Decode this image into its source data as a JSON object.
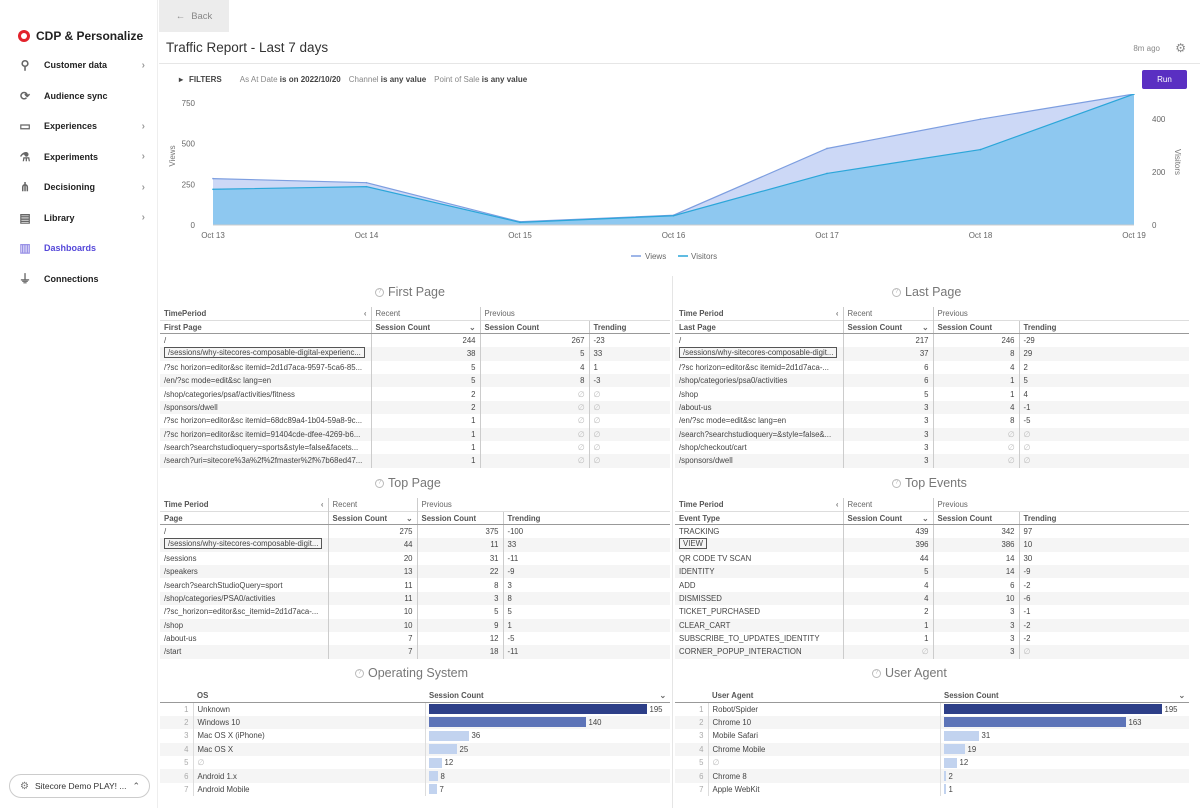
{
  "sidebar": {
    "brand": "CDP & Personalize",
    "items": [
      {
        "label": "Customer data",
        "icon": "user-icon",
        "chev": true
      },
      {
        "label": "Audience sync",
        "icon": "sync-icon",
        "chev": false
      },
      {
        "label": "Experiences",
        "icon": "experiences-icon",
        "chev": true
      },
      {
        "label": "Experiments",
        "icon": "experiments-icon",
        "chev": true
      },
      {
        "label": "Decisioning",
        "icon": "decisioning-icon",
        "chev": true
      },
      {
        "label": "Library",
        "icon": "library-icon",
        "chev": true
      },
      {
        "label": "Dashboards",
        "icon": "dashboard-icon",
        "chev": false,
        "active": true
      },
      {
        "label": "Connections",
        "icon": "plug-icon",
        "chev": false
      }
    ],
    "org": "Sitecore Demo PLAY! ..."
  },
  "header": {
    "back_label": "Back",
    "title": "Traffic Report - Last 7 days",
    "updated": "8m ago"
  },
  "filters": {
    "title": "FILTERS",
    "items": [
      {
        "name": "As At Date",
        "op": "is on",
        "value": "2022/10/20"
      },
      {
        "name": "Channel",
        "op": "is",
        "value": "any value"
      },
      {
        "name": "Point of Sale",
        "op": "is",
        "value": "any value"
      }
    ],
    "run_label": "Run"
  },
  "chart_data": {
    "type": "area",
    "categories": [
      "Oct 13",
      "Oct 14",
      "Oct 15",
      "Oct 16",
      "Oct 17",
      "Oct 18",
      "Oct 19"
    ],
    "series": [
      {
        "name": "Views",
        "axis": "left",
        "values": [
          285,
          260,
          20,
          60,
          470,
          650,
          830
        ]
      },
      {
        "name": "Visitors",
        "axis": "right",
        "values": [
          135,
          145,
          10,
          35,
          195,
          285,
          510
        ]
      }
    ],
    "ylabel": "Views",
    "y2label": "Visitors",
    "yticks": [
      "0",
      "250",
      "500",
      "750"
    ],
    "y2ticks": [
      "0",
      "200",
      "400"
    ],
    "ylim": [
      0,
      780
    ],
    "y2lim": [
      0,
      480
    ],
    "colors": {
      "views_fill": "#c9d6f5",
      "views_line": "#7d9ee0",
      "visitors_fill": "#8ac7ef",
      "visitors_line": "#2ba6d9"
    }
  },
  "first_page": {
    "title": "First Page",
    "time_period": "TimePeriod",
    "recent": "Recent",
    "previous": "Previous",
    "col_page": "First Page",
    "col_sc": "Session Count",
    "col_psc": "Session Count",
    "col_trend": "Trending",
    "rows": [
      {
        "page": "/",
        "recent": "244",
        "prev": "267",
        "trend": "-23"
      },
      {
        "page": "/sessions/why-sitecores-composable-digital-experienc...",
        "recent": "38",
        "prev": "5",
        "trend": "33"
      },
      {
        "page": "/?sc horizon=editor&sc itemid=2d1d7aca-9597-5ca6-85...",
        "recent": "5",
        "prev": "4",
        "trend": "1"
      },
      {
        "page": "/en/?sc mode=edit&sc lang=en",
        "recent": "5",
        "prev": "8",
        "trend": "-3"
      },
      {
        "page": "/shop/categories/psaf/activities/fitness",
        "recent": "2",
        "prev": "∅",
        "trend": "∅"
      },
      {
        "page": "/sponsors/dwell",
        "recent": "2",
        "prev": "∅",
        "trend": "∅"
      },
      {
        "page": "/?sc horizon=editor&sc itemid=68dc89a4-1b04-59a8-9c...",
        "recent": "1",
        "prev": "∅",
        "trend": "∅"
      },
      {
        "page": "/?sc horizon=editor&sc itemid=91404cde-dfee-4269-b6...",
        "recent": "1",
        "prev": "∅",
        "trend": "∅"
      },
      {
        "page": "/search?searchstudioquery=sports&style=false&facets...",
        "recent": "1",
        "prev": "∅",
        "trend": "∅"
      },
      {
        "page": "/search?uri=sitecore%3a%2f%2fmaster%2f%7b68ed47...",
        "recent": "1",
        "prev": "∅",
        "trend": "∅"
      }
    ]
  },
  "last_page": {
    "title": "Last Page",
    "time_period": "Time Period",
    "recent": "Recent",
    "previous": "Previous",
    "col_page": "Last Page",
    "col_sc": "Session Count",
    "col_psc": "Session Count",
    "col_trend": "Trending",
    "rows": [
      {
        "page": "/",
        "recent": "217",
        "prev": "246",
        "trend": "-29"
      },
      {
        "page": "/sessions/why-sitecores-composable-digit...",
        "recent": "37",
        "prev": "8",
        "trend": "29"
      },
      {
        "page": "/?sc horizon=editor&sc itemid=2d1d7aca-...",
        "recent": "6",
        "prev": "4",
        "trend": "2"
      },
      {
        "page": "/shop/categories/psa0/activities",
        "recent": "6",
        "prev": "1",
        "trend": "5"
      },
      {
        "page": "/shop",
        "recent": "5",
        "prev": "1",
        "trend": "4"
      },
      {
        "page": "/about-us",
        "recent": "3",
        "prev": "4",
        "trend": "-1"
      },
      {
        "page": "/en/?sc mode=edit&sc lang=en",
        "recent": "3",
        "prev": "8",
        "trend": "-5"
      },
      {
        "page": "/search?searchstudioquery=&style=false&...",
        "recent": "3",
        "prev": "∅",
        "trend": "∅"
      },
      {
        "page": "/shop/checkout/cart",
        "recent": "3",
        "prev": "∅",
        "trend": "∅"
      },
      {
        "page": "/sponsors/dwell",
        "recent": "3",
        "prev": "∅",
        "trend": "∅"
      }
    ]
  },
  "top_page": {
    "title": "Top Page",
    "time_period": "Time Period",
    "recent": "Recent",
    "previous": "Previous",
    "col_page": "Page",
    "col_sc": "Session Count",
    "col_psc": "Session Count",
    "col_trend": "Trending",
    "rows": [
      {
        "page": "/",
        "recent": "275",
        "prev": "375",
        "trend": "-100"
      },
      {
        "page": "/sessions/why-sitecores-composable-digit...",
        "recent": "44",
        "prev": "11",
        "trend": "33"
      },
      {
        "page": "/sessions",
        "recent": "20",
        "prev": "31",
        "trend": "-11"
      },
      {
        "page": "/speakers",
        "recent": "13",
        "prev": "22",
        "trend": "-9"
      },
      {
        "page": "/search?searchStudioQuery=sport",
        "recent": "11",
        "prev": "8",
        "trend": "3"
      },
      {
        "page": "/shop/categories/PSA0/activities",
        "recent": "11",
        "prev": "3",
        "trend": "8"
      },
      {
        "page": "/?sc_horizon=editor&sc_itemid=2d1d7aca-...",
        "recent": "10",
        "prev": "5",
        "trend": "5"
      },
      {
        "page": "/shop",
        "recent": "10",
        "prev": "9",
        "trend": "1"
      },
      {
        "page": "/about-us",
        "recent": "7",
        "prev": "12",
        "trend": "-5"
      },
      {
        "page": "/start",
        "recent": "7",
        "prev": "18",
        "trend": "-11"
      }
    ]
  },
  "top_events": {
    "title": "Top Events",
    "time_period": "Time Period",
    "recent": "Recent",
    "previous": "Previous",
    "col_page": "Event Type",
    "col_sc": "Session Count",
    "col_psc": "Session Count",
    "col_trend": "Trending",
    "rows": [
      {
        "page": "TRACKING",
        "recent": "439",
        "prev": "342",
        "trend": "97"
      },
      {
        "page": "VIEW",
        "recent": "396",
        "prev": "386",
        "trend": "10"
      },
      {
        "page": "QR CODE TV SCAN",
        "recent": "44",
        "prev": "14",
        "trend": "30"
      },
      {
        "page": "IDENTITY",
        "recent": "5",
        "prev": "14",
        "trend": "-9"
      },
      {
        "page": "ADD",
        "recent": "4",
        "prev": "6",
        "trend": "-2"
      },
      {
        "page": "DISMISSED",
        "recent": "4",
        "prev": "10",
        "trend": "-6"
      },
      {
        "page": "TICKET_PURCHASED",
        "recent": "2",
        "prev": "3",
        "trend": "-1"
      },
      {
        "page": "CLEAR_CART",
        "recent": "1",
        "prev": "3",
        "trend": "-2"
      },
      {
        "page": "SUBSCRIBE_TO_UPDATES_IDENTITY",
        "recent": "1",
        "prev": "3",
        "trend": "-2"
      },
      {
        "page": "CORNER_POPUP_INTERACTION",
        "recent": "∅",
        "prev": "3",
        "trend": "∅"
      }
    ]
  },
  "os": {
    "title": "Operating System",
    "col_label": "OS",
    "col_value": "Session Count",
    "rows": [
      {
        "idx": "1",
        "label": "Unknown",
        "value": 195
      },
      {
        "idx": "2",
        "label": "Windows 10",
        "value": 140
      },
      {
        "idx": "3",
        "label": "Mac OS X (iPhone)",
        "value": 36
      },
      {
        "idx": "4",
        "label": "Mac OS X",
        "value": 25
      },
      {
        "idx": "5",
        "label": "∅",
        "value": 12
      },
      {
        "idx": "6",
        "label": "Android 1.x",
        "value": 8
      },
      {
        "idx": "7",
        "label": "Android Mobile",
        "value": 7
      }
    ]
  },
  "ua": {
    "title": "User Agent",
    "col_label": "User Agent",
    "col_value": "Session Count",
    "rows": [
      {
        "idx": "1",
        "label": "Robot/Spider",
        "value": 195
      },
      {
        "idx": "2",
        "label": "Chrome 10",
        "value": 163
      },
      {
        "idx": "3",
        "label": "Mobile Safari",
        "value": 31
      },
      {
        "idx": "4",
        "label": "Chrome Mobile",
        "value": 19
      },
      {
        "idx": "5",
        "label": "∅",
        "value": 12
      },
      {
        "idx": "6",
        "label": "Chrome 8",
        "value": 2
      },
      {
        "idx": "7",
        "label": "Apple WebKit",
        "value": 1
      }
    ]
  }
}
